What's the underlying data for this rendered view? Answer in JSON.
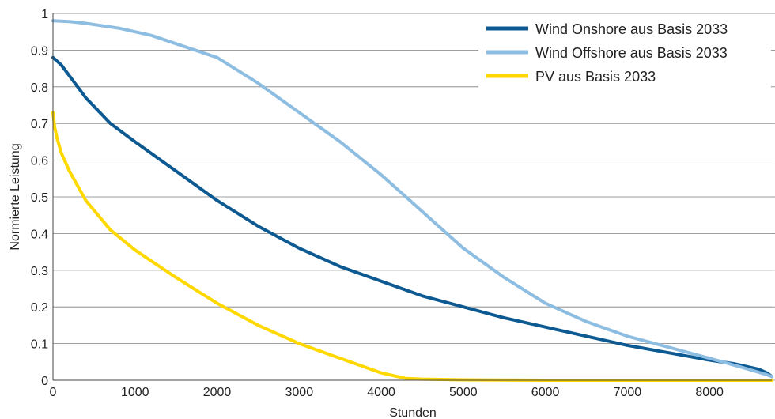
{
  "chart_data": {
    "type": "line",
    "title": "",
    "xlabel": "Stunden",
    "ylabel": "Normierte Leistung",
    "xlim": [
      0,
      8760
    ],
    "ylim": [
      0,
      1
    ],
    "x_ticks": [
      0,
      1000,
      2000,
      3000,
      4000,
      5000,
      6000,
      7000,
      8000
    ],
    "x_tick_labels": [
      "0",
      "1000",
      "2000",
      "3000",
      "4000",
      "5000",
      "6000",
      "7000",
      "8000"
    ],
    "y_ticks": [
      0,
      0.1,
      0.2,
      0.3,
      0.4,
      0.5,
      0.6,
      0.7,
      0.8,
      0.9,
      1
    ],
    "y_tick_labels": [
      "0",
      "0.1",
      "0.2",
      "0.3",
      "0.4",
      "0.5",
      "0.6",
      "0.7",
      "0.8",
      "0.9",
      "1"
    ],
    "grid": "horizontal",
    "legend_position": "top-right",
    "series": [
      {
        "name": "Wind Onshore aus Basis 2033",
        "color": "#0d5a93",
        "x": [
          0,
          100,
          200,
          400,
          700,
          1000,
          1500,
          2000,
          2500,
          3000,
          3500,
          4000,
          4500,
          5000,
          5500,
          6000,
          6500,
          7000,
          7500,
          8000,
          8300,
          8600,
          8700,
          8760
        ],
        "y": [
          0.88,
          0.86,
          0.83,
          0.77,
          0.7,
          0.65,
          0.57,
          0.49,
          0.42,
          0.36,
          0.31,
          0.27,
          0.23,
          0.2,
          0.17,
          0.145,
          0.12,
          0.095,
          0.075,
          0.055,
          0.045,
          0.03,
          0.02,
          0.01
        ]
      },
      {
        "name": "Wind Offshore aus Basis 2033",
        "color": "#8ebde2",
        "x": [
          0,
          200,
          400,
          800,
          1200,
          1600,
          2000,
          2500,
          3000,
          3500,
          4000,
          4500,
          5000,
          5500,
          6000,
          6500,
          7000,
          7500,
          8000,
          8400,
          8700,
          8760
        ],
        "y": [
          0.98,
          0.978,
          0.973,
          0.96,
          0.94,
          0.91,
          0.88,
          0.81,
          0.73,
          0.65,
          0.56,
          0.46,
          0.36,
          0.28,
          0.21,
          0.16,
          0.12,
          0.09,
          0.06,
          0.035,
          0.015,
          0.01
        ]
      },
      {
        "name": "PV aus Basis 2033",
        "color": "#ffd800",
        "x": [
          0,
          20,
          50,
          100,
          200,
          400,
          700,
          1000,
          1500,
          2000,
          2500,
          3000,
          3500,
          4000,
          4300,
          4500,
          4800,
          5000,
          6000,
          7000,
          8000,
          8760
        ],
        "y": [
          0.73,
          0.69,
          0.66,
          0.62,
          0.57,
          0.49,
          0.41,
          0.355,
          0.28,
          0.21,
          0.15,
          0.1,
          0.06,
          0.02,
          0.005,
          0.003,
          0.002,
          0.001,
          0.0,
          0.0,
          0.0,
          0.0
        ]
      }
    ]
  }
}
